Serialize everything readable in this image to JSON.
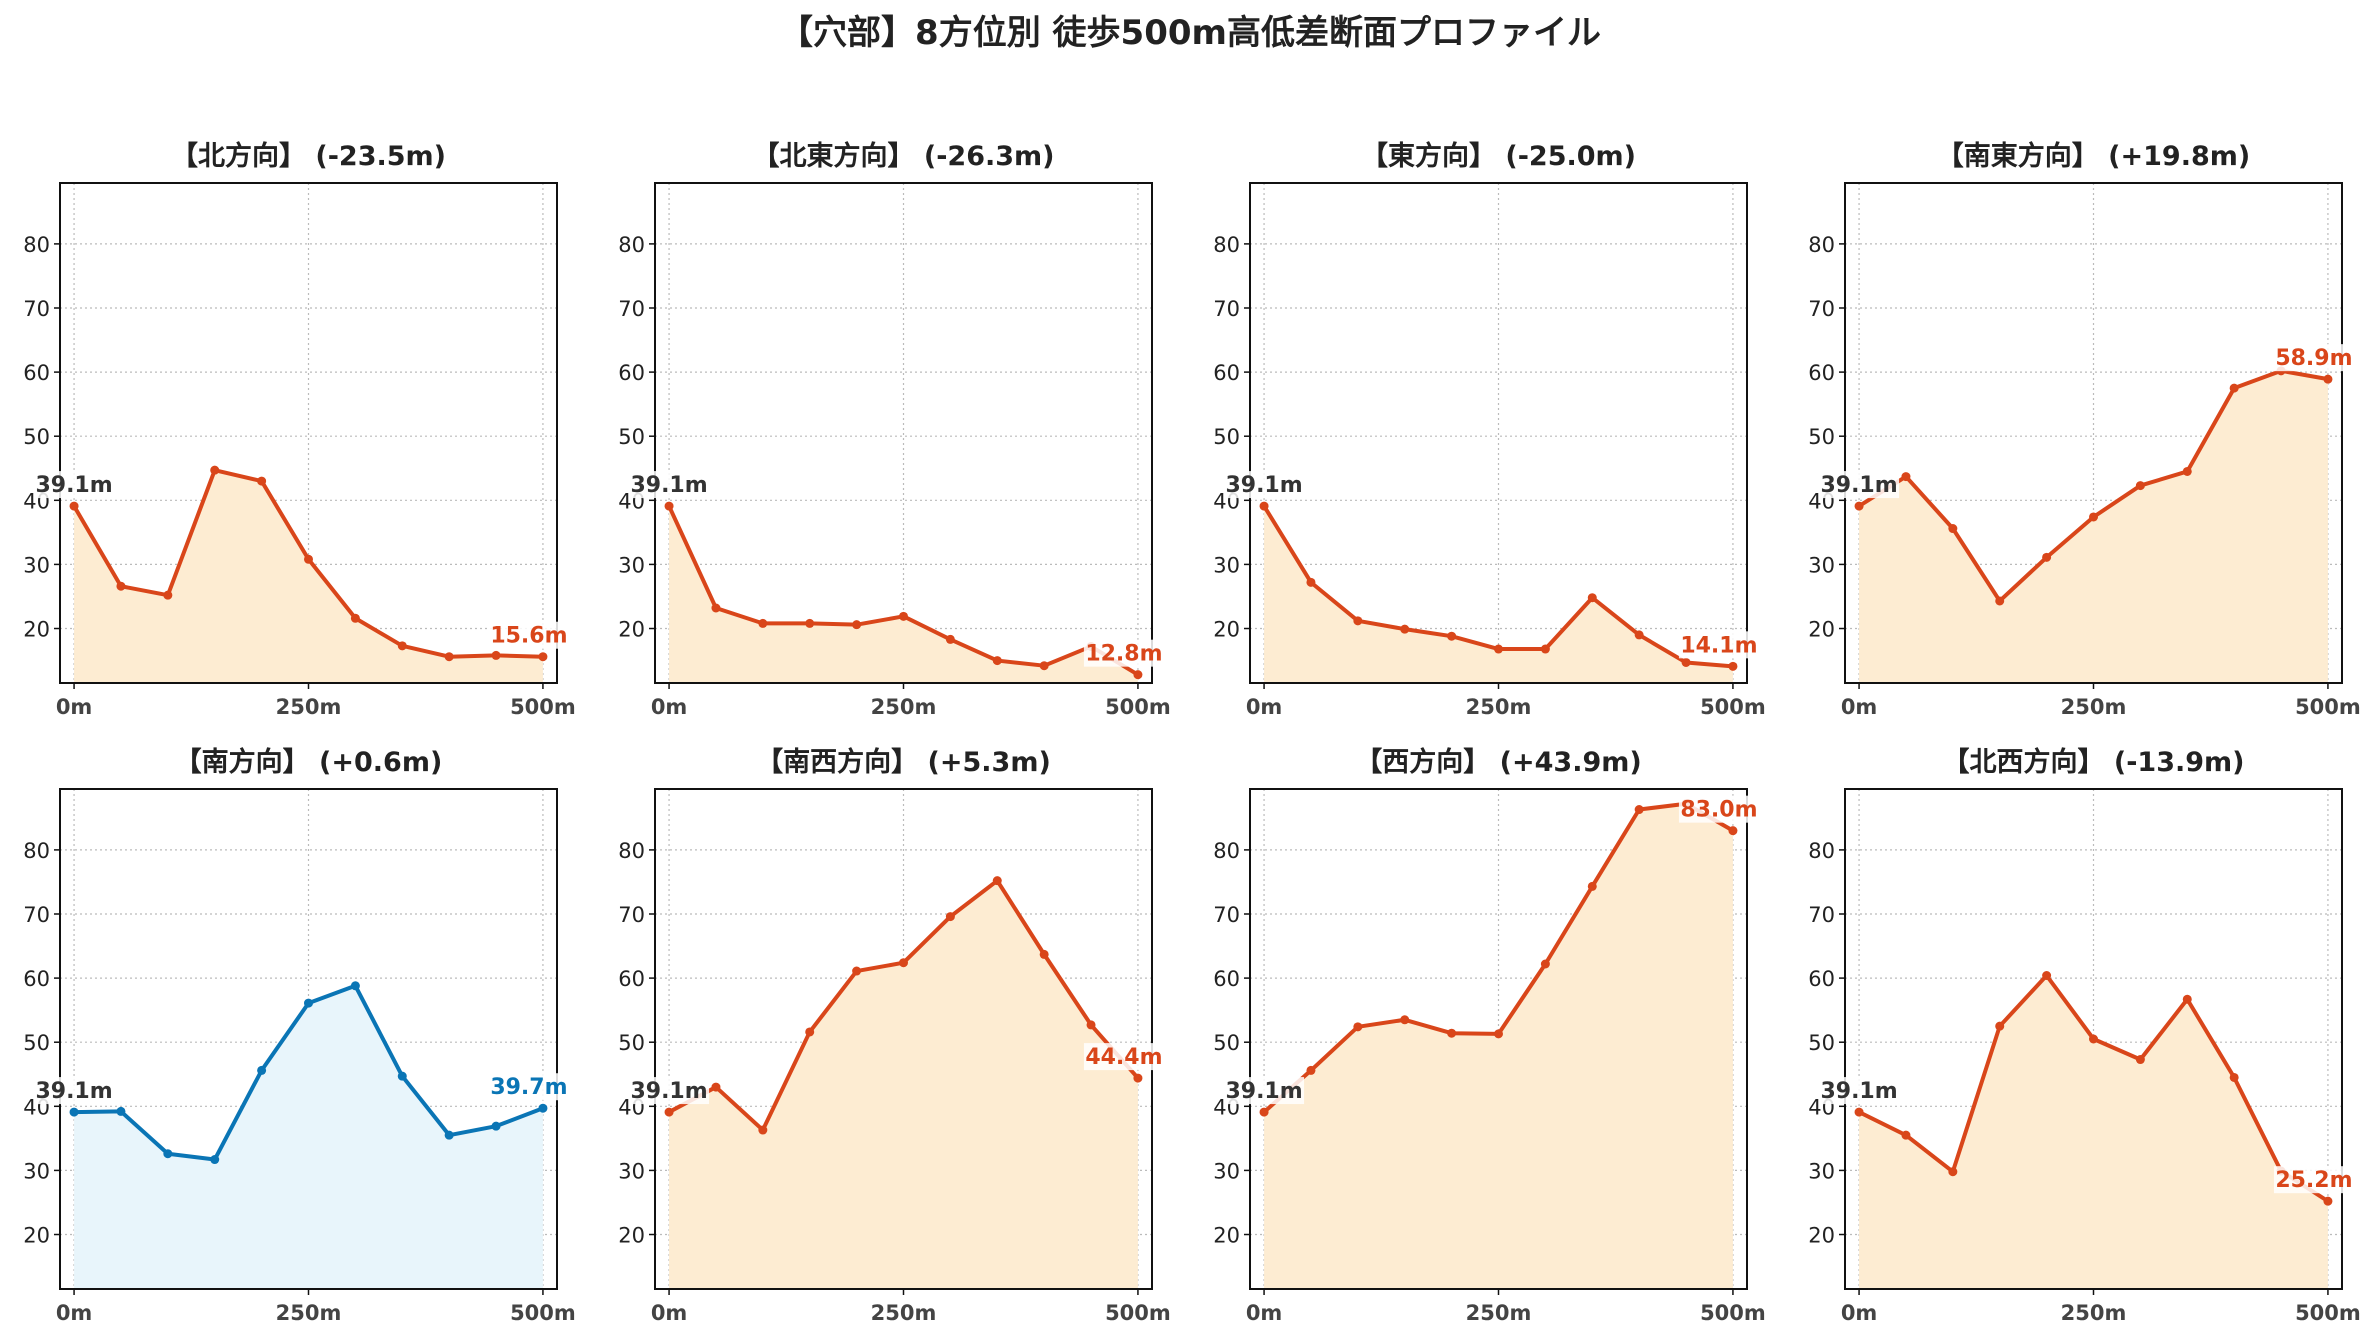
{
  "suptitle": "【穴部】8方位別 徒歩500m高低差断面プロファイル",
  "colors": {
    "down": "#d9461a",
    "up": "#d9461a",
    "neutral": "#0a75b5",
    "fill_default": "#fdecd2",
    "fill_neutral": "#e8f5fb",
    "start_label": "#333333",
    "grid": "#bbbbbb"
  },
  "chart_data": [
    {
      "type": "line",
      "title": "【北方向】 (-23.5m)",
      "x": [
        0,
        50,
        100,
        150,
        200,
        250,
        300,
        350,
        400,
        450,
        500
      ],
      "y": [
        39.1,
        26.6,
        25.2,
        44.7,
        43.0,
        30.8,
        21.6,
        17.3,
        15.6,
        15.8,
        15.6
      ],
      "xticks": [
        "0m",
        "250m",
        "500m"
      ],
      "yticks": [
        20,
        30,
        40,
        50,
        60,
        70,
        80
      ],
      "ylim": [
        11.5,
        89.5
      ],
      "xlim": [
        -15,
        515
      ],
      "start_label": "39.1m",
      "end_label": "15.6m",
      "theme": "down",
      "grid": true
    },
    {
      "type": "line",
      "title": "【北東方向】 (-26.3m)",
      "x": [
        0,
        50,
        100,
        150,
        200,
        250,
        300,
        350,
        400,
        450,
        500
      ],
      "y": [
        39.1,
        23.2,
        20.8,
        20.8,
        20.6,
        21.9,
        18.3,
        15.0,
        14.2,
        17.2,
        12.8
      ],
      "xticks": [
        "0m",
        "250m",
        "500m"
      ],
      "yticks": [
        20,
        30,
        40,
        50,
        60,
        70,
        80
      ],
      "ylim": [
        11.5,
        89.5
      ],
      "xlim": [
        -15,
        515
      ],
      "start_label": "39.1m",
      "end_label": "12.8m",
      "theme": "down",
      "grid": true
    },
    {
      "type": "line",
      "title": "【東方向】 (-25.0m)",
      "x": [
        0,
        50,
        100,
        150,
        200,
        250,
        300,
        350,
        400,
        450,
        500
      ],
      "y": [
        39.1,
        27.2,
        21.2,
        19.9,
        18.8,
        16.8,
        16.8,
        24.8,
        19.0,
        14.7,
        14.1
      ],
      "xticks": [
        "0m",
        "250m",
        "500m"
      ],
      "yticks": [
        20,
        30,
        40,
        50,
        60,
        70,
        80
      ],
      "ylim": [
        11.5,
        89.5
      ],
      "xlim": [
        -15,
        515
      ],
      "start_label": "39.1m",
      "end_label": "14.1m",
      "theme": "down",
      "grid": true
    },
    {
      "type": "line",
      "title": "【南東方向】 (+19.8m)",
      "x": [
        0,
        50,
        100,
        150,
        200,
        250,
        300,
        350,
        400,
        450,
        500
      ],
      "y": [
        39.1,
        43.7,
        35.6,
        24.3,
        31.1,
        37.4,
        42.3,
        44.5,
        57.5,
        60.2,
        58.9
      ],
      "xticks": [
        "0m",
        "250m",
        "500m"
      ],
      "yticks": [
        20,
        30,
        40,
        50,
        60,
        70,
        80
      ],
      "ylim": [
        11.5,
        89.5
      ],
      "xlim": [
        -15,
        515
      ],
      "start_label": "39.1m",
      "end_label": "58.9m",
      "theme": "up",
      "grid": true
    },
    {
      "type": "line",
      "title": "【南方向】 (+0.6m)",
      "x": [
        0,
        50,
        100,
        150,
        200,
        250,
        300,
        350,
        400,
        450,
        500
      ],
      "y": [
        39.1,
        39.2,
        32.6,
        31.7,
        45.6,
        56.1,
        58.8,
        44.7,
        35.5,
        36.9,
        39.7
      ],
      "xticks": [
        "0m",
        "250m",
        "500m"
      ],
      "yticks": [
        20,
        30,
        40,
        50,
        60,
        70,
        80
      ],
      "ylim": [
        11.5,
        89.5
      ],
      "xlim": [
        -15,
        515
      ],
      "start_label": "39.1m",
      "end_label": "39.7m",
      "theme": "neutral",
      "grid": true
    },
    {
      "type": "line",
      "title": "【南西方向】 (+5.3m)",
      "x": [
        0,
        50,
        100,
        150,
        200,
        250,
        300,
        350,
        400,
        450,
        500
      ],
      "y": [
        39.1,
        43.0,
        36.3,
        51.6,
        61.1,
        62.4,
        69.6,
        75.2,
        63.7,
        52.7,
        44.4
      ],
      "xticks": [
        "0m",
        "250m",
        "500m"
      ],
      "yticks": [
        20,
        30,
        40,
        50,
        60,
        70,
        80
      ],
      "ylim": [
        11.5,
        89.5
      ],
      "xlim": [
        -15,
        515
      ],
      "start_label": "39.1m",
      "end_label": "44.4m",
      "theme": "up",
      "grid": true
    },
    {
      "type": "line",
      "title": "【西方向】 (+43.9m)",
      "x": [
        0,
        50,
        100,
        150,
        200,
        250,
        300,
        350,
        400,
        450,
        500
      ],
      "y": [
        39.1,
        45.6,
        52.4,
        53.5,
        51.4,
        51.3,
        62.2,
        74.3,
        86.3,
        87.2,
        83.0
      ],
      "xticks": [
        "0m",
        "250m",
        "500m"
      ],
      "yticks": [
        20,
        30,
        40,
        50,
        60,
        70,
        80
      ],
      "ylim": [
        11.5,
        89.5
      ],
      "xlim": [
        -15,
        515
      ],
      "start_label": "39.1m",
      "end_label": "83.0m",
      "theme": "up",
      "grid": true
    },
    {
      "type": "line",
      "title": "【北西方向】 (-13.9m)",
      "x": [
        0,
        50,
        100,
        150,
        200,
        250,
        300,
        350,
        400,
        450,
        500
      ],
      "y": [
        39.1,
        35.5,
        29.8,
        52.5,
        60.4,
        50.5,
        47.3,
        56.7,
        44.5,
        29.9,
        25.2
      ],
      "xticks": [
        "0m",
        "250m",
        "500m"
      ],
      "yticks": [
        20,
        30,
        40,
        50,
        60,
        70,
        80
      ],
      "ylim": [
        11.5,
        89.5
      ],
      "xlim": [
        -15,
        515
      ],
      "start_label": "39.1m",
      "end_label": "25.2m",
      "theme": "down",
      "grid": true
    }
  ]
}
